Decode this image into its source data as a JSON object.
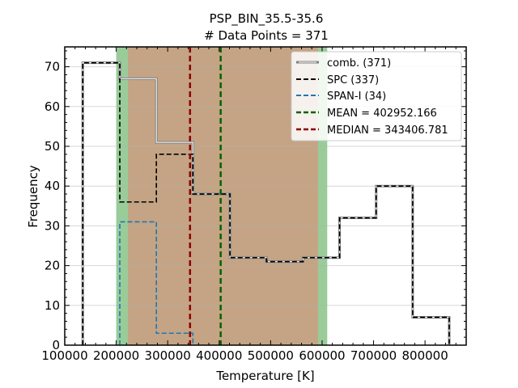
{
  "chart_data": {
    "type": "histogram",
    "title": "PSP_BIN_35.5-35.6",
    "subtitle": "# Data Points = 371",
    "xlabel": "Temperature [K]",
    "ylabel": "Frequency",
    "xlim": [
      100000,
      880000
    ],
    "ylim": [
      0,
      75
    ],
    "xticks": [
      100000,
      200000,
      300000,
      400000,
      500000,
      600000,
      700000,
      800000
    ],
    "xtick_labels": [
      "100000",
      "200000",
      "300000",
      "400000",
      "500000",
      "600000",
      "700000",
      "800000"
    ],
    "yticks": [
      0,
      10,
      20,
      30,
      40,
      50,
      60,
      70
    ],
    "ytick_labels": [
      "0",
      "10",
      "20",
      "30",
      "40",
      "50",
      "60",
      "70"
    ],
    "grid": "horizontal",
    "legend_position": "top-right",
    "bands": [
      {
        "from": 200000,
        "to": 610000,
        "color": "#99cc99"
      },
      {
        "from": 223000,
        "to": 592000,
        "color": "#c4a484"
      }
    ],
    "series": [
      {
        "name": "comb. (371)",
        "style": "solid",
        "color": "#808080",
        "edges": [
          135000,
          207000,
          278000,
          349000,
          421000,
          492000,
          563000,
          634000,
          705000,
          776000,
          847000
        ],
        "counts": [
          71,
          67,
          51,
          38,
          22,
          21,
          22,
          32,
          40,
          7
        ]
      },
      {
        "name": "SPC (337)",
        "style": "dashed",
        "color": "#000000",
        "edges": [
          135000,
          207000,
          278000,
          349000,
          421000,
          492000,
          563000,
          634000,
          705000,
          776000,
          847000
        ],
        "counts": [
          71,
          36,
          48,
          38,
          22,
          21,
          22,
          32,
          40,
          7
        ]
      },
      {
        "name": "SPAN-I (34)",
        "style": "dashed",
        "color": "#1f77b4",
        "edges": [
          207000,
          278000,
          349000
        ],
        "counts": [
          31,
          3
        ]
      }
    ],
    "vlines": [
      {
        "name": "MEAN = 402952.166",
        "x": 402952.166,
        "color": "#006400"
      },
      {
        "name": "MEDIAN = 343406.781",
        "x": 343406.781,
        "color": "#8b0000"
      }
    ]
  }
}
